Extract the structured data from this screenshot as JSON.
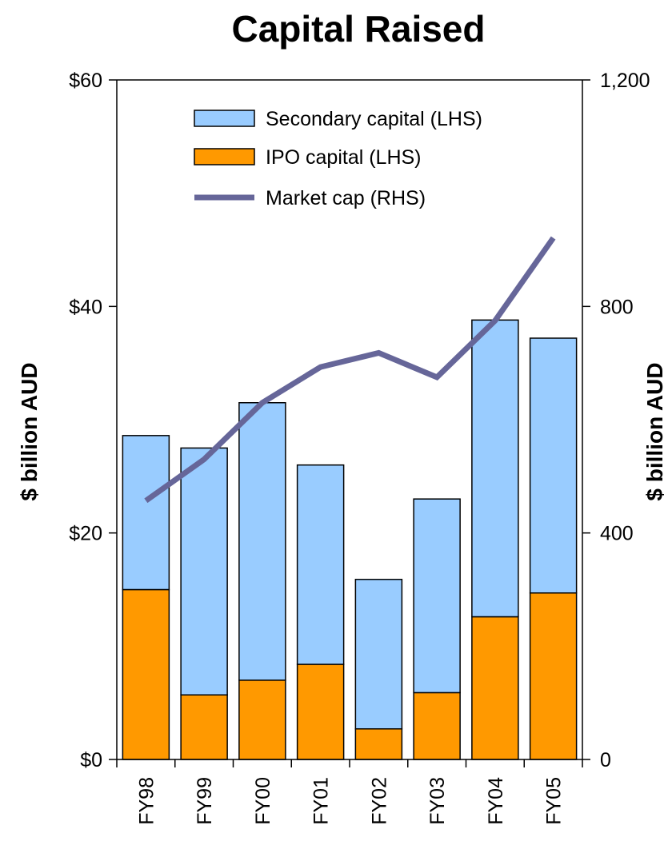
{
  "chart_data": {
    "type": "bar",
    "title": "Capital Raised",
    "categories": [
      "FY98",
      "FY99",
      "FY00",
      "FY01",
      "FY02",
      "FY03",
      "FY04",
      "FY05"
    ],
    "series": [
      {
        "name": "IPO capital (LHS)",
        "type": "bar",
        "stack": "capital",
        "axis": "left",
        "color": "#FF9900",
        "values": [
          15.0,
          5.7,
          7.0,
          8.4,
          2.7,
          5.9,
          12.6,
          14.7
        ]
      },
      {
        "name": "Secondary capital (LHS)",
        "type": "bar",
        "stack": "capital",
        "axis": "left",
        "color": "#99CCFF",
        "values": [
          13.6,
          21.8,
          24.5,
          17.6,
          13.2,
          17.1,
          26.2,
          22.5
        ]
      },
      {
        "name": "Market cap (RHS)",
        "type": "line",
        "axis": "right",
        "color": "#666699",
        "values": [
          457,
          530,
          630,
          693,
          718,
          675,
          775,
          921
        ]
      }
    ],
    "ylabel": "$ billion AUD",
    "y2label": "$ billion AUD",
    "ylim": [
      0,
      60
    ],
    "y2lim": [
      0,
      1200
    ],
    "yticks": [
      "$0",
      "$20",
      "$40",
      "$60"
    ],
    "y2ticks": [
      "0",
      "400",
      "800",
      "1,200"
    ],
    "legend_position": "top",
    "grid": false
  }
}
